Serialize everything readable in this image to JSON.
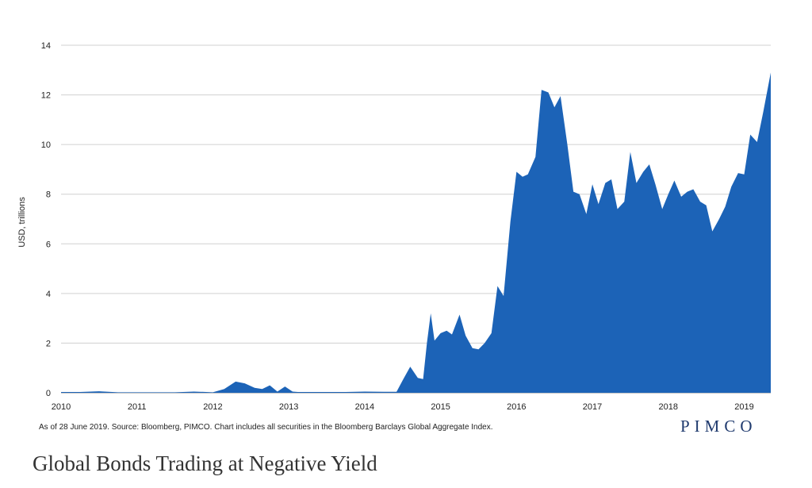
{
  "chart_data": {
    "type": "area",
    "ylabel": "USD, trillions",
    "ylim": [
      0,
      14
    ],
    "yticks": [
      0,
      2,
      4,
      6,
      8,
      10,
      12,
      14
    ],
    "xlim": [
      2010,
      2019.35
    ],
    "xticks": [
      "2010",
      "2011",
      "2012",
      "2013",
      "2014",
      "2015",
      "2016",
      "2017",
      "2018",
      "2019"
    ],
    "grid": "horizontal",
    "legend": "none",
    "color": "#1c63b7",
    "x": [
      2010.0,
      2010.25,
      2010.5,
      2010.75,
      2011.0,
      2011.25,
      2011.5,
      2011.75,
      2012.0,
      2012.15,
      2012.3,
      2012.42,
      2012.55,
      2012.65,
      2012.75,
      2012.85,
      2012.95,
      2013.05,
      2013.12,
      2013.25,
      2013.5,
      2013.75,
      2014.0,
      2014.25,
      2014.42,
      2014.5,
      2014.6,
      2014.7,
      2014.77,
      2014.82,
      2014.87,
      2014.92,
      2015.0,
      2015.08,
      2015.15,
      2015.25,
      2015.33,
      2015.42,
      2015.5,
      2015.58,
      2015.67,
      2015.75,
      2015.83,
      2015.92,
      2016.0,
      2016.08,
      2016.15,
      2016.25,
      2016.33,
      2016.42,
      2016.5,
      2016.58,
      2016.67,
      2016.75,
      2016.83,
      2016.92,
      2017.0,
      2017.08,
      2017.17,
      2017.25,
      2017.33,
      2017.42,
      2017.5,
      2017.58,
      2017.67,
      2017.75,
      2017.83,
      2017.92,
      2018.0,
      2018.08,
      2018.17,
      2018.25,
      2018.33,
      2018.42,
      2018.5,
      2018.58,
      2018.67,
      2018.75,
      2018.83,
      2018.92,
      2019.0,
      2019.08,
      2019.17,
      2019.25,
      2019.35
    ],
    "y": [
      0.03,
      0.03,
      0.06,
      0.02,
      0.02,
      0.02,
      0.02,
      0.05,
      0.02,
      0.15,
      0.45,
      0.38,
      0.2,
      0.15,
      0.3,
      0.05,
      0.25,
      0.05,
      0.03,
      0.03,
      0.03,
      0.03,
      0.05,
      0.04,
      0.04,
      0.5,
      1.05,
      0.6,
      0.55,
      2.0,
      3.2,
      2.1,
      2.4,
      2.5,
      2.35,
      3.15,
      2.3,
      1.8,
      1.75,
      2.0,
      2.4,
      4.3,
      3.9,
      6.9,
      8.9,
      8.7,
      8.8,
      9.5,
      12.2,
      12.1,
      11.5,
      11.95,
      10.0,
      8.1,
      8.0,
      7.2,
      8.4,
      7.6,
      8.45,
      8.6,
      7.4,
      7.7,
      9.7,
      8.45,
      8.9,
      9.2,
      8.4,
      7.4,
      8.0,
      8.55,
      7.9,
      8.1,
      8.2,
      7.7,
      7.55,
      6.5,
      7.0,
      7.5,
      8.3,
      8.85,
      8.8,
      10.4,
      10.1,
      11.3,
      12.9
    ]
  },
  "footnote": "As of 28 June 2019. Source: Bloomberg, PIMCO. Chart includes all securities in the Bloomberg Barclays Global Aggregate Index.",
  "brand": "PIMCO",
  "title": "Global Bonds Trading at Negative Yield"
}
